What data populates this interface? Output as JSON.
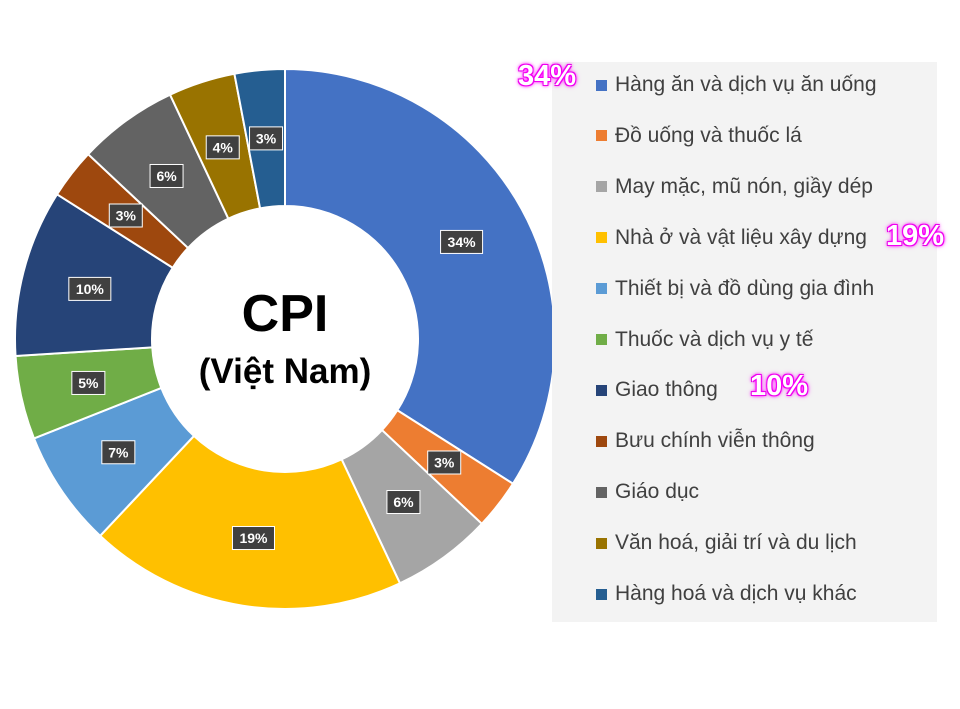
{
  "chart_data": {
    "type": "pie",
    "title": "CPI",
    "subtitle": "(Việt Nam)",
    "categories": [
      "Hàng ăn và dịch vụ ăn uống",
      "Đồ uống và thuốc lá",
      "May mặc, mũ nón, giầy dép",
      "Nhà ở và vật liệu xây dựng",
      "Thiết bị và đồ dùng gia đình",
      "Thuốc và dịch vụ y tế",
      "Giao thông",
      "Bưu chính viễn thông",
      "Giáo dục",
      "Văn hoá, giải trí và du lịch",
      "Hàng hoá và dịch vụ khác"
    ],
    "values": [
      34,
      3,
      6,
      19,
      7,
      5,
      10,
      3,
      6,
      4,
      3
    ],
    "labels": [
      "34%",
      "3%",
      "6%",
      "19%",
      "7%",
      "5%",
      "10%",
      "3%",
      "6%",
      "4%",
      "3%"
    ],
    "colors": [
      "#4472c4",
      "#ed7d31",
      "#a5a5a5",
      "#ffc000",
      "#5b9bd5",
      "#70ad47",
      "#264478",
      "#9e480e",
      "#636363",
      "#997300",
      "#255e91"
    ],
    "legend_position": "right"
  },
  "callouts": {
    "food": "34%",
    "housing": "19%",
    "transport": "10%"
  },
  "callout_color": "#ff00ff"
}
